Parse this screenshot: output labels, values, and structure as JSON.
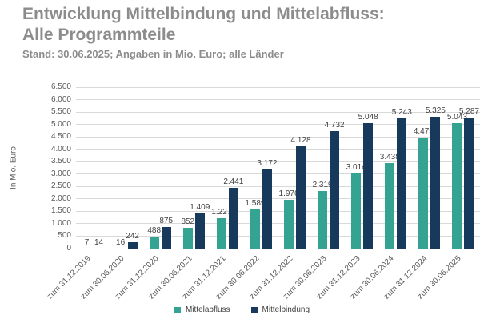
{
  "header": {
    "title_line1": "Entwicklung Mittelbindung und Mittelabfluss:",
    "title_line2": "Alle Programmteile",
    "subtitle": "Stand: 30.06.2025; Angaben in Mio. Euro; alle Länder"
  },
  "colors": {
    "title_text": "#8c8c8c",
    "axis_text": "#595959",
    "data_label_text": "#404040",
    "gridline": "#d9d9d9",
    "background": "#ffffff"
  },
  "chart_data": {
    "type": "bar",
    "title": "Entwicklung Mittelbindung und Mittelabfluss: Alle Programmteile",
    "subtitle": "Stand: 30.06.2025; Angaben in Mio. Euro; alle Länder",
    "xlabel": "",
    "ylabel": "In Mio. Euro",
    "ylim": [
      0,
      6500
    ],
    "ytick_step": 500,
    "ytick_labels": [
      "0",
      "500",
      "1.000",
      "1.500",
      "2.000",
      "2.500",
      "3.000",
      "3.500",
      "4.000",
      "4.500",
      "5.000",
      "5.500",
      "6.000",
      "6.500"
    ],
    "grid": true,
    "legend_position": "bottom",
    "categories": [
      "zum 31.12.2019",
      "zum 30.06.2020",
      "zum 31.12.2020",
      "zum 30.06.2021",
      "zum 31.12.2021",
      "zum 30.06.2022",
      "zum 31.12.2022",
      "zum 30.06.2023",
      "zum 31.12.2023",
      "zum 30.06.2024",
      "zum 31.12.2024",
      "zum 30.06.2025"
    ],
    "series": [
      {
        "name": "Mittelabfluss",
        "color": "#35a391",
        "values": [
          7,
          16,
          488,
          852,
          1227,
          1589,
          1976,
          2319,
          3014,
          3438,
          4475,
          5043
        ],
        "labels": [
          "7",
          "16",
          "488",
          "852",
          "1.227",
          "1.589",
          "1.976",
          "2.319",
          "3.014",
          "3.438",
          "4.475",
          "5.043"
        ]
      },
      {
        "name": "Mittelbindung",
        "color": "#17395c",
        "values": [
          14,
          242,
          875,
          1409,
          2441,
          3172,
          4128,
          4732,
          5048,
          5243,
          5325,
          5287
        ],
        "labels": [
          "14",
          "242",
          "875",
          "1.409",
          "2.441",
          "3.172",
          "4.128",
          "4.732",
          "5.048",
          "5.243",
          "5.325",
          "5.287"
        ]
      }
    ]
  }
}
